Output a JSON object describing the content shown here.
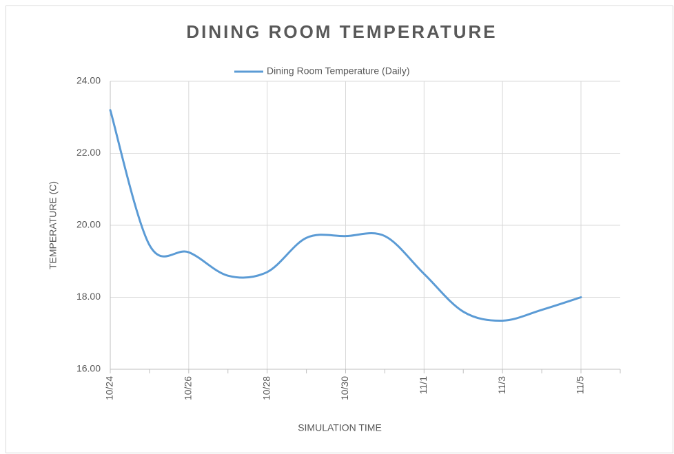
{
  "chart_data": {
    "type": "line",
    "title": "DINING ROOM TEMPERATURE",
    "x_label": "SIMULATION TIME",
    "y_label": "TEMPERATURE (C)",
    "categories": [
      "10/24",
      null,
      "10/26",
      null,
      "10/28",
      null,
      "10/30",
      null,
      "11/1",
      null,
      "11/3",
      null,
      "11/5"
    ],
    "series": [
      {
        "name": "Dining Room Temperature (Daily)",
        "color": "#5b9bd5",
        "values": [
          23.2,
          19.45,
          19.25,
          18.6,
          18.7,
          19.65,
          19.7,
          19.7,
          18.65,
          17.6,
          17.35,
          17.65,
          18.0
        ]
      }
    ],
    "ylim": [
      16,
      24
    ],
    "yticks": [
      {
        "value": 16,
        "label": "16.00"
      },
      {
        "value": 18,
        "label": "18.00"
      },
      {
        "value": 20,
        "label": "20.00"
      },
      {
        "value": 22,
        "label": "22.00"
      },
      {
        "value": 24,
        "label": "24.00"
      }
    ],
    "grid": true,
    "legend": "top",
    "smooth": true
  }
}
